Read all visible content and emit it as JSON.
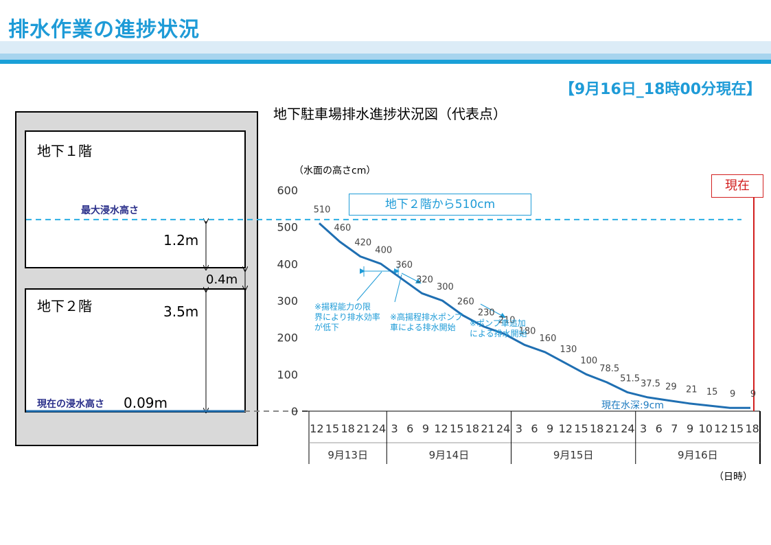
{
  "page": {
    "title": "排水作業の進捗状況",
    "status": "【9月16日_18時00分現在】"
  },
  "building": {
    "floor1_label": "地下１階",
    "floor2_label": "地下２階",
    "max_level_label": "最大浸水高さ",
    "current_level_label": "現在の浸水高さ",
    "current_level_value": "0.09m",
    "dim_upper": "1.2m",
    "dim_slab": "0.4m",
    "dim_lower": "3.5m"
  },
  "annotations": {
    "callout": "地下２階から510cm",
    "now_label": "現在",
    "now_depth": "現在水深:9cm",
    "note1": [
      "※揚程能力の限",
      "界により排水効率",
      "が低下"
    ],
    "note2": [
      "※高揚程排水ポンプ",
      "車による排水開始"
    ],
    "note3": [
      "※ポンプ車追加",
      "による排水開始"
    ]
  },
  "colors": {
    "accent": "#1e9bd7",
    "line": "#1f6fb2",
    "now": "#d21e1e",
    "navy_label": "#2a2f8a"
  },
  "chart_data": {
    "type": "line",
    "title": "地下駐車場排水進捗状況図（代表点）",
    "ylabel": "（水面の高さcm）",
    "xlabel": "（日時）",
    "ylim": [
      0,
      600
    ],
    "yticks": [
      "600",
      "500",
      "400",
      "300",
      "200",
      "100",
      "0"
    ],
    "grid": false,
    "x_hours": [
      {
        "label": "12",
        "group": 0
      },
      {
        "label": "15",
        "group": 0
      },
      {
        "label": "18",
        "group": 0
      },
      {
        "label": "21",
        "group": 0
      },
      {
        "label": "24",
        "group": 0
      },
      {
        "label": "3",
        "group": 1
      },
      {
        "label": "6",
        "group": 1
      },
      {
        "label": "9",
        "group": 1
      },
      {
        "label": "12",
        "group": 1
      },
      {
        "label": "15",
        "group": 1
      },
      {
        "label": "18",
        "group": 1
      },
      {
        "label": "21",
        "group": 1
      },
      {
        "label": "24",
        "group": 1
      },
      {
        "label": "3",
        "group": 2
      },
      {
        "label": "6",
        "group": 2
      },
      {
        "label": "9",
        "group": 2
      },
      {
        "label": "12",
        "group": 2
      },
      {
        "label": "15",
        "group": 2
      },
      {
        "label": "18",
        "group": 2
      },
      {
        "label": "21",
        "group": 2
      },
      {
        "label": "24",
        "group": 2
      },
      {
        "label": "3",
        "group": 3
      },
      {
        "label": "6",
        "group": 3
      },
      {
        "label": "7",
        "group": 3
      },
      {
        "label": "9",
        "group": 3
      },
      {
        "label": "10",
        "group": 3
      },
      {
        "label": "12",
        "group": 3
      },
      {
        "label": "15",
        "group": 3
      },
      {
        "label": "18",
        "group": 3
      }
    ],
    "x_groups": [
      "9月13日",
      "9月14日",
      "9月15日",
      "9月16日"
    ],
    "series": [
      {
        "values": [
          510,
          460,
          420,
          400,
          360,
          320,
          300,
          260,
          230,
          210,
          180,
          160,
          130,
          100,
          78.5,
          51.5,
          37.5,
          29,
          21,
          15,
          9,
          9
        ],
        "labels": [
          "510",
          "460",
          "420",
          "400",
          "360",
          "320",
          "300",
          "260",
          "230",
          "210",
          "180",
          "160",
          "130",
          "100",
          "78.5",
          "51.5",
          "37.5",
          "29",
          "21",
          "15",
          "9",
          "9"
        ]
      }
    ],
    "reference_lines": {
      "max_flood_cm": 520
    }
  }
}
